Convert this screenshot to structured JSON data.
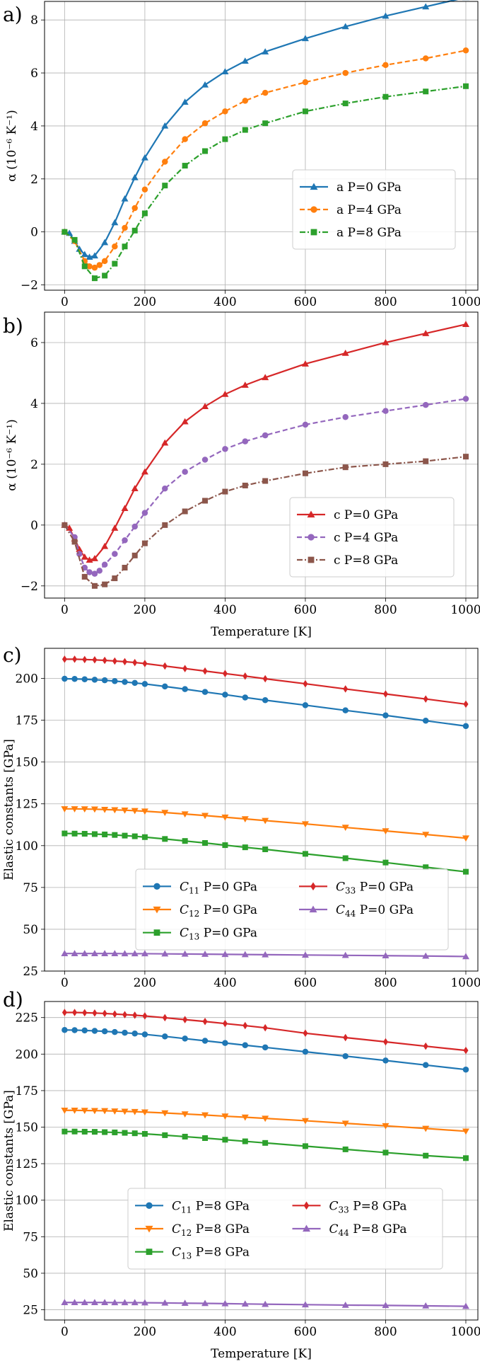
{
  "chart_data": [
    {
      "type": "line",
      "panel_label": "a)",
      "title": "",
      "xlabel": "",
      "ylabel": "α (10⁻⁶ K⁻¹)",
      "xlim": [
        -50,
        1030
      ],
      "ylim": [
        -2.2,
        8.7
      ],
      "xticks": [
        0,
        200,
        400,
        600,
        800,
        1000
      ],
      "yticks": [
        -2,
        0,
        2,
        4,
        6,
        8
      ],
      "grid": true,
      "legend_loc": "center-right",
      "legend_cols": 1,
      "series": [
        {
          "name": "a P=0 GPa",
          "color": "#1f77b4",
          "marker": "triangle",
          "dash": "solid",
          "x": [
            0,
            12,
            25,
            37,
            50,
            62,
            75,
            100,
            125,
            150,
            175,
            200,
            250,
            300,
            350,
            400,
            450,
            500,
            600,
            700,
            800,
            900,
            1000
          ],
          "y": [
            0,
            -0.05,
            -0.35,
            -0.65,
            -0.85,
            -0.95,
            -0.9,
            -0.4,
            0.35,
            1.25,
            2.05,
            2.8,
            4.0,
            4.9,
            5.55,
            6.05,
            6.45,
            6.8,
            7.3,
            7.75,
            8.15,
            8.5,
            8.85
          ]
        },
        {
          "name": "a P=4 GPa",
          "color": "#ff7f0e",
          "marker": "circle",
          "dash": "dashed",
          "x": [
            0,
            25,
            50,
            62,
            75,
            87,
            100,
            125,
            150,
            175,
            200,
            250,
            300,
            350,
            400,
            450,
            500,
            600,
            700,
            800,
            900,
            1000
          ],
          "y": [
            0,
            -0.35,
            -1.1,
            -1.3,
            -1.35,
            -1.25,
            -1.1,
            -0.55,
            0.15,
            0.9,
            1.6,
            2.65,
            3.5,
            4.1,
            4.55,
            4.95,
            5.25,
            5.65,
            6.0,
            6.3,
            6.55,
            6.85
          ]
        },
        {
          "name": "a P=8 GPa",
          "color": "#2ca02c",
          "marker": "square",
          "dash": "dashdot",
          "x": [
            0,
            25,
            50,
            75,
            100,
            125,
            150,
            175,
            200,
            250,
            300,
            350,
            400,
            450,
            500,
            600,
            700,
            800,
            900,
            1000
          ],
          "y": [
            0,
            -0.3,
            -1.3,
            -1.75,
            -1.65,
            -1.2,
            -0.55,
            0.05,
            0.7,
            1.75,
            2.5,
            3.05,
            3.5,
            3.85,
            4.1,
            4.55,
            4.85,
            5.1,
            5.3,
            5.5
          ]
        }
      ]
    },
    {
      "type": "line",
      "panel_label": "b)",
      "title": "",
      "xlabel": "Temperature [K]",
      "ylabel": "α (10⁻⁶ K⁻¹)",
      "xlim": [
        -50,
        1030
      ],
      "ylim": [
        -2.4,
        7.0
      ],
      "xticks": [
        0,
        200,
        400,
        600,
        800,
        1000
      ],
      "yticks": [
        -2,
        0,
        2,
        4,
        6
      ],
      "grid": true,
      "legend_loc": "lower-right",
      "legend_cols": 1,
      "series": [
        {
          "name": "c P=0 GPa",
          "color": "#d62728",
          "marker": "triangle",
          "dash": "solid",
          "x": [
            0,
            12,
            25,
            37,
            50,
            62,
            75,
            100,
            125,
            150,
            175,
            200,
            250,
            300,
            350,
            400,
            450,
            500,
            600,
            700,
            800,
            900,
            1000
          ],
          "y": [
            0,
            -0.1,
            -0.45,
            -0.8,
            -1.05,
            -1.15,
            -1.1,
            -0.7,
            -0.1,
            0.55,
            1.2,
            1.75,
            2.7,
            3.4,
            3.9,
            4.3,
            4.6,
            4.85,
            5.3,
            5.65,
            6.0,
            6.3,
            6.6
          ]
        },
        {
          "name": "c P=4 GPa",
          "color": "#9467bd",
          "marker": "circle",
          "dash": "dashed",
          "x": [
            0,
            25,
            37,
            50,
            62,
            75,
            87,
            100,
            125,
            150,
            175,
            200,
            250,
            300,
            350,
            400,
            450,
            500,
            600,
            700,
            800,
            900,
            1000
          ],
          "y": [
            0,
            -0.4,
            -0.95,
            -1.4,
            -1.55,
            -1.6,
            -1.5,
            -1.3,
            -0.95,
            -0.5,
            -0.05,
            0.4,
            1.2,
            1.75,
            2.15,
            2.5,
            2.75,
            2.95,
            3.3,
            3.55,
            3.75,
            3.95,
            4.15
          ]
        },
        {
          "name": "c P=8 GPa",
          "color": "#8c564b",
          "marker": "square",
          "dash": "dashdot",
          "x": [
            0,
            25,
            50,
            75,
            100,
            125,
            150,
            175,
            200,
            250,
            300,
            350,
            400,
            450,
            500,
            600,
            700,
            800,
            900,
            1000
          ],
          "y": [
            0,
            -0.55,
            -1.7,
            -2.0,
            -1.95,
            -1.75,
            -1.4,
            -1.0,
            -0.6,
            0.0,
            0.45,
            0.8,
            1.1,
            1.3,
            1.45,
            1.7,
            1.9,
            2.0,
            2.1,
            2.25
          ]
        }
      ]
    },
    {
      "type": "line",
      "panel_label": "c)",
      "title": "",
      "xlabel": "",
      "ylabel": "Elastic constants [GPa]",
      "xlim": [
        -50,
        1030
      ],
      "ylim": [
        25,
        218
      ],
      "xticks": [
        0,
        200,
        400,
        600,
        800,
        1000
      ],
      "yticks": [
        25,
        50,
        75,
        100,
        125,
        150,
        175,
        200
      ],
      "grid": true,
      "legend_loc": "lower-center",
      "legend_cols": 2,
      "series": [
        {
          "name": "C",
          "sub": "11",
          "suffix": " P=0 GPa",
          "color": "#1f77b4",
          "marker": "circle",
          "dash": "solid",
          "x": [
            0,
            25,
            50,
            75,
            100,
            125,
            150,
            175,
            200,
            250,
            300,
            350,
            400,
            450,
            500,
            600,
            700,
            800,
            900,
            1000
          ],
          "y": [
            199.8,
            199.7,
            199.5,
            199.2,
            198.9,
            198.4,
            197.9,
            197.3,
            196.7,
            195.2,
            193.6,
            191.9,
            190.3,
            188.6,
            187.0,
            184.0,
            180.9,
            177.9,
            174.7,
            171.5
          ]
        },
        {
          "name": "C",
          "sub": "12",
          "suffix": " P=0 GPa",
          "color": "#ff7f0e",
          "marker": "triangle-down",
          "dash": "solid",
          "x": [
            0,
            25,
            50,
            75,
            100,
            125,
            150,
            175,
            200,
            250,
            300,
            350,
            400,
            450,
            500,
            600,
            700,
            800,
            900,
            1000
          ],
          "y": [
            122.0,
            122.0,
            121.9,
            121.8,
            121.6,
            121.4,
            121.2,
            120.9,
            120.6,
            119.8,
            118.9,
            118.0,
            117.0,
            116.0,
            115.0,
            113.0,
            110.9,
            108.8,
            106.7,
            104.5
          ]
        },
        {
          "name": "C",
          "sub": "13",
          "suffix": " P=0 GPa",
          "color": "#2ca02c",
          "marker": "square",
          "dash": "solid",
          "x": [
            0,
            25,
            50,
            75,
            100,
            125,
            150,
            175,
            200,
            250,
            300,
            350,
            400,
            450,
            500,
            600,
            700,
            800,
            900,
            1000
          ],
          "y": [
            107.3,
            107.2,
            107.1,
            106.9,
            106.7,
            106.4,
            106.0,
            105.6,
            105.1,
            104.0,
            102.8,
            101.6,
            100.3,
            99.0,
            97.8,
            95.1,
            92.5,
            89.9,
            87.1,
            84.4
          ]
        },
        {
          "name": "C",
          "sub": "33",
          "suffix": " P=0 GPa",
          "color": "#d62728",
          "marker": "diamond",
          "dash": "solid",
          "x": [
            0,
            25,
            50,
            75,
            100,
            125,
            150,
            175,
            200,
            250,
            300,
            350,
            400,
            450,
            500,
            600,
            700,
            800,
            900,
            1000
          ],
          "y": [
            211.5,
            211.5,
            211.3,
            211.1,
            210.8,
            210.4,
            210.0,
            209.5,
            208.9,
            207.4,
            205.9,
            204.4,
            202.9,
            201.4,
            199.8,
            196.8,
            193.7,
            190.7,
            187.7,
            184.6
          ]
        },
        {
          "name": "C",
          "sub": "44",
          "suffix": " P=0 GPa",
          "color": "#9467bd",
          "marker": "triangle",
          "dash": "solid",
          "x": [
            0,
            25,
            50,
            75,
            100,
            125,
            150,
            175,
            200,
            250,
            300,
            350,
            400,
            450,
            500,
            600,
            700,
            800,
            900,
            1000
          ],
          "y": [
            35.5,
            35.5,
            35.5,
            35.5,
            35.5,
            35.5,
            35.4,
            35.4,
            35.4,
            35.3,
            35.2,
            35.1,
            35.0,
            34.9,
            34.8,
            34.6,
            34.4,
            34.2,
            34.0,
            33.7
          ]
        }
      ]
    },
    {
      "type": "line",
      "panel_label": "d)",
      "title": "",
      "xlabel": "Temperature [K]",
      "ylabel": "Elastic constants [GPa]",
      "xlim": [
        -50,
        1030
      ],
      "ylim": [
        18,
        236
      ],
      "xticks": [
        0,
        200,
        400,
        600,
        800,
        1000
      ],
      "yticks": [
        25,
        50,
        75,
        100,
        125,
        150,
        175,
        200,
        225
      ],
      "grid": true,
      "legend_loc": "lower-center",
      "legend_cols": 2,
      "series": [
        {
          "name": "C",
          "sub": "11",
          "suffix": " P=8 GPa",
          "color": "#1f77b4",
          "marker": "circle",
          "dash": "solid",
          "x": [
            0,
            25,
            50,
            75,
            100,
            125,
            150,
            175,
            200,
            250,
            300,
            350,
            400,
            450,
            500,
            600,
            700,
            800,
            900,
            1000
          ],
          "y": [
            216.5,
            216.4,
            216.2,
            215.9,
            215.6,
            215.1,
            214.6,
            214.1,
            213.5,
            212.1,
            210.6,
            209.1,
            207.6,
            206.1,
            204.6,
            201.6,
            198.6,
            195.6,
            192.5,
            189.4
          ]
        },
        {
          "name": "C",
          "sub": "12",
          "suffix": " P=8 GPa",
          "color": "#ff7f0e",
          "marker": "triangle-down",
          "dash": "solid",
          "x": [
            0,
            25,
            50,
            75,
            100,
            125,
            150,
            175,
            200,
            250,
            300,
            350,
            400,
            450,
            500,
            600,
            700,
            800,
            900,
            1000
          ],
          "y": [
            161.5,
            161.5,
            161.4,
            161.3,
            161.2,
            161.0,
            160.8,
            160.6,
            160.3,
            159.7,
            159.0,
            158.3,
            157.5,
            156.8,
            156.0,
            154.4,
            152.6,
            150.9,
            149.1,
            147.2
          ]
        },
        {
          "name": "C",
          "sub": "13",
          "suffix": " P=8 GPa",
          "color": "#2ca02c",
          "marker": "square",
          "dash": "solid",
          "x": [
            0,
            25,
            50,
            75,
            100,
            125,
            150,
            175,
            200,
            250,
            300,
            350,
            400,
            450,
            500,
            600,
            700,
            800,
            900,
            1000
          ],
          "y": [
            147.0,
            147.0,
            146.9,
            146.8,
            146.6,
            146.4,
            146.1,
            145.8,
            145.4,
            144.5,
            143.5,
            142.5,
            141.4,
            140.3,
            139.2,
            137.0,
            134.8,
            132.6,
            130.5,
            128.8
          ]
        },
        {
          "name": "C",
          "sub": "33",
          "suffix": " P=8 GPa",
          "color": "#d62728",
          "marker": "diamond",
          "dash": "solid",
          "x": [
            0,
            25,
            50,
            75,
            100,
            125,
            150,
            175,
            200,
            250,
            300,
            350,
            400,
            450,
            500,
            600,
            700,
            800,
            900,
            1000
          ],
          "y": [
            228.5,
            228.5,
            228.3,
            228.1,
            227.8,
            227.4,
            227.0,
            226.6,
            226.1,
            224.9,
            223.6,
            222.3,
            220.9,
            219.5,
            218.0,
            214.3,
            211.3,
            208.4,
            205.4,
            202.5
          ]
        },
        {
          "name": "C",
          "sub": "44",
          "suffix": " P=8 GPa",
          "color": "#9467bd",
          "marker": "triangle",
          "dash": "solid",
          "x": [
            0,
            25,
            50,
            75,
            100,
            125,
            150,
            175,
            200,
            250,
            300,
            350,
            400,
            450,
            500,
            600,
            700,
            800,
            900,
            1000
          ],
          "y": [
            30.0,
            30.0,
            30.0,
            30.0,
            30.0,
            29.9,
            29.9,
            29.9,
            29.8,
            29.7,
            29.5,
            29.4,
            29.2,
            29.0,
            28.8,
            28.5,
            28.2,
            28.0,
            27.7,
            27.4
          ]
        }
      ]
    }
  ]
}
